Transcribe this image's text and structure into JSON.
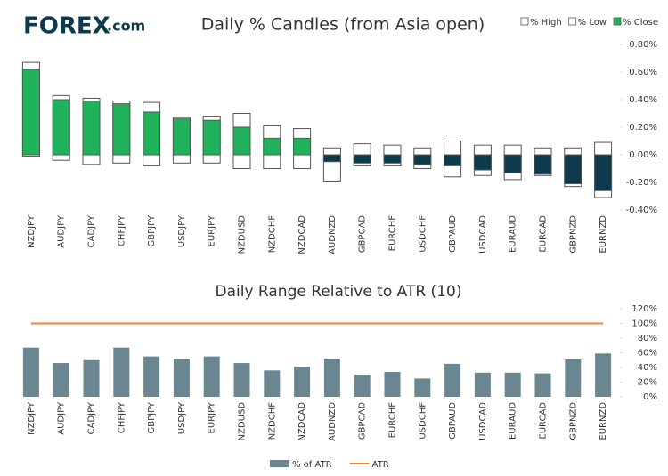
{
  "logo": {
    "name": "FOREX",
    "suffix": ".com"
  },
  "chart_data": [
    {
      "type": "candle",
      "title": "Daily % Candles (from Asia open)",
      "categories": [
        "NZDJPY",
        "AUDJPY",
        "CADJPY",
        "CHFJPY",
        "GBPJPY",
        "USDJPY",
        "EURJPY",
        "NZDUSD",
        "NZDCHF",
        "NZDCAD",
        "AUDNZD",
        "GBPCAD",
        "EURCHF",
        "USDCHF",
        "GBPAUD",
        "USDCAD",
        "EURAUD",
        "EURCAD",
        "GBPNZD",
        "EURNZD"
      ],
      "series": [
        {
          "name": "% High",
          "color": "#ffffff",
          "values": [
            0.67,
            0.43,
            0.41,
            0.39,
            0.38,
            0.27,
            0.28,
            0.3,
            0.21,
            0.19,
            0.05,
            0.08,
            0.07,
            0.05,
            0.1,
            0.07,
            0.07,
            0.05,
            0.05,
            0.09
          ]
        },
        {
          "name": "% Low",
          "color": "#ffffff",
          "values": [
            -0.01,
            -0.04,
            -0.07,
            -0.06,
            -0.08,
            -0.06,
            -0.06,
            -0.1,
            -0.1,
            -0.1,
            -0.19,
            -0.08,
            -0.08,
            -0.1,
            -0.16,
            -0.15,
            -0.18,
            -0.15,
            -0.23,
            -0.31
          ]
        },
        {
          "name": "% Close",
          "color": "#1fb25a",
          "negative_color": "#0d3a4c",
          "values": [
            0.62,
            0.4,
            0.39,
            0.37,
            0.31,
            0.26,
            0.25,
            0.2,
            0.12,
            0.12,
            -0.05,
            -0.06,
            -0.06,
            -0.07,
            -0.08,
            -0.11,
            -0.13,
            -0.14,
            -0.21,
            -0.26
          ]
        }
      ],
      "ylim": [
        -0.4,
        0.8
      ],
      "yticks": [
        {
          "value": 0.8,
          "label": "0.80%"
        },
        {
          "value": 0.6,
          "label": "0.60%"
        },
        {
          "value": 0.4,
          "label": "0.40%"
        },
        {
          "value": 0.2,
          "label": "0.20%"
        },
        {
          "value": 0,
          "label": "0.00%"
        },
        {
          "value": -0.2,
          "label": "-0.20%"
        },
        {
          "value": -0.4,
          "label": "-0.40%"
        }
      ],
      "grid": false,
      "legend": "top-right"
    },
    {
      "type": "bar",
      "title": "Daily Range Relative to ATR (10)",
      "categories": [
        "NZDJPY",
        "AUDJPY",
        "CADJPY",
        "CHFJPY",
        "GBPJPY",
        "USDJPY",
        "EURJPY",
        "NZDUSD",
        "NZDCHF",
        "NZDCAD",
        "AUDNZD",
        "GBPCAD",
        "EURCHF",
        "USDCHF",
        "GBPAUD",
        "USDCAD",
        "EURAUD",
        "EURCAD",
        "GBPNZD",
        "EURNZD"
      ],
      "series": [
        {
          "name": "% of ATR",
          "color": "#6a8791",
          "values": [
            67,
            46,
            50,
            67,
            55,
            52,
            55,
            46,
            36,
            41,
            52,
            30,
            34,
            25,
            45,
            33,
            33,
            32,
            51,
            59
          ]
        },
        {
          "name": "ATR",
          "color": "#f0892a",
          "type": "line",
          "values": [
            100,
            100,
            100,
            100,
            100,
            100,
            100,
            100,
            100,
            100,
            100,
            100,
            100,
            100,
            100,
            100,
            100,
            100,
            100,
            100
          ]
        }
      ],
      "ylim": [
        0,
        120
      ],
      "yticks": [
        {
          "value": 0,
          "label": "0%"
        },
        {
          "value": 20,
          "label": "20%"
        },
        {
          "value": 40,
          "label": "40%"
        },
        {
          "value": 60,
          "label": "60%"
        },
        {
          "value": 80,
          "label": "80%"
        },
        {
          "value": 100,
          "label": "100%"
        },
        {
          "value": 120,
          "label": "120%"
        }
      ],
      "grid": false,
      "legend": "bottom"
    }
  ]
}
